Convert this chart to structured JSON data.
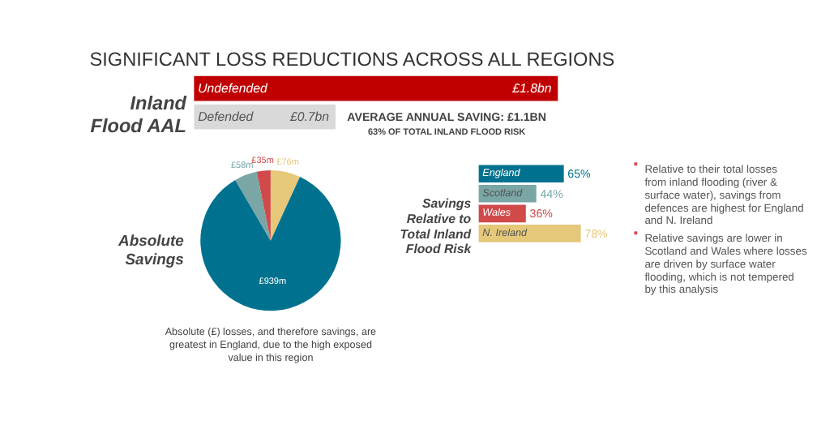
{
  "chart_data": [
    {
      "type": "bar",
      "orientation": "horizontal",
      "title": "SIGNIFICANT LOSS REDUCTIONS ACROSS ALL REGIONS",
      "ylabel": "Inland Flood AAL",
      "categories": [
        "Undefended",
        "Defended"
      ],
      "values": [
        1.8,
        0.7
      ],
      "colors": [
        "#c00000",
        "#d9d9d9"
      ],
      "value_labels": [
        "£1.8bn",
        "£0.7bn"
      ],
      "annotations": [
        "AVERAGE ANNUAL SAVING: £1.1BN",
        "63% OF TOTAL INLAND FLOOD RISK"
      ]
    },
    {
      "type": "pie",
      "title": "Absolute Savings",
      "categories": [
        null,
        null,
        null,
        null
      ],
      "values": [
        76,
        939,
        58,
        35
      ],
      "colors": [
        "#e6c87a",
        "#00728f",
        "#7aa6a6",
        "#d04a4a"
      ],
      "value_labels": [
        "£76m",
        "£939m",
        "£58m",
        "£35m"
      ],
      "annotations": [
        "Absolute (£) losses, and therefore savings, are greatest in England, due to the high exposed value in this region"
      ]
    },
    {
      "type": "bar",
      "orientation": "horizontal",
      "title": "Savings Relative to Total Inland Flood Risk",
      "categories": [
        "England",
        "Scotland",
        "Wales",
        "N. Ireland"
      ],
      "values": [
        65,
        44,
        36,
        78
      ],
      "colors": [
        "#00728f",
        "#7aa6a6",
        "#d04a4a",
        "#e6c87a"
      ],
      "value_labels": [
        "65%",
        "44%",
        "36%",
        "78%"
      ],
      "annotations": [
        "Relative to their total losses from inland flooding (river & surface water), savings from defences are highest for England and N. Ireland",
        "Relative savings are lower in Scotland and Wales where losses are driven by surface water flooding, which is not tempered by this analysis"
      ]
    }
  ]
}
